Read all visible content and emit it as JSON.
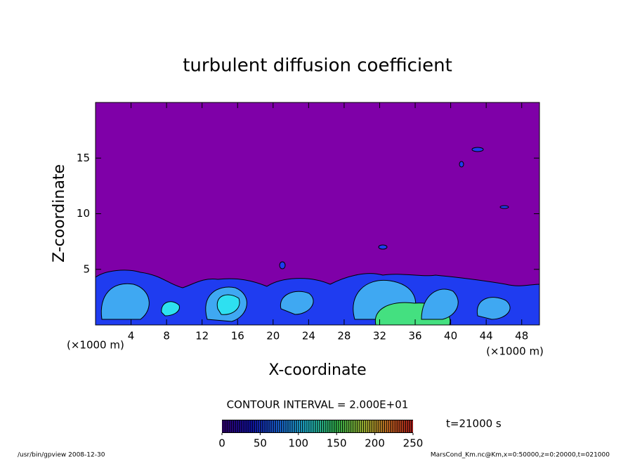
{
  "chart_data": {
    "type": "contour",
    "title": "turbulent diffusion coefficient",
    "x_label": "X-coordinate",
    "y_label": "Z-coordinate",
    "x_unit": "(×1000 m)",
    "xlim": [
      0,
      50
    ],
    "ylim": [
      0,
      20
    ],
    "xticks": [
      4,
      8,
      12,
      16,
      20,
      24,
      28,
      32,
      36,
      40,
      44,
      48
    ],
    "yticks": [
      5,
      10,
      15
    ],
    "background_color": "#7f00a8",
    "contour_interval": "CONTOUR INTERVAL = 2.000E+01",
    "time_label": "t=21000 s",
    "colorbar": {
      "lim": [
        0,
        250
      ],
      "ticks": [
        0,
        50,
        100,
        150,
        200,
        250
      ]
    },
    "footer_left": "/usr/bin/gpview   2008-12-30",
    "footer_right": "MarsCond_Km.nc@Km,x=0:50000,z=0:20000,t=021000"
  }
}
